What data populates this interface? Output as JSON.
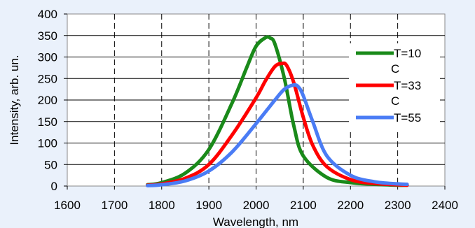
{
  "chart_data": {
    "type": "line",
    "title": "",
    "xlabel": "Wavelength, nm",
    "ylabel": "Intensity, arb. un.",
    "xlim": [
      1600,
      2400
    ],
    "ylim": [
      0,
      400
    ],
    "x_ticks": [
      "1600",
      "1700",
      "1800",
      "1900",
      "2000",
      "2100",
      "2200",
      "2300",
      "2400"
    ],
    "y_ticks": [
      "0",
      "50",
      "100",
      "150",
      "200",
      "250",
      "300",
      "350",
      "400"
    ],
    "grid": {
      "vertical": "dashed",
      "horizontal": "solid"
    },
    "legend_position": "right",
    "series": [
      {
        "name": "T=10",
        "name_extra": "C",
        "color": "#1a8a1a",
        "x": [
          1770,
          1800,
          1850,
          1900,
          1950,
          1980,
          2000,
          2020,
          2030,
          2040,
          2060,
          2080,
          2100,
          2150,
          2200,
          2250,
          2300,
          2320
        ],
        "y": [
          3,
          8,
          30,
          85,
          195,
          275,
          325,
          345,
          344,
          330,
          250,
          140,
          70,
          20,
          8,
          4,
          2,
          2
        ]
      },
      {
        "name": "T=33",
        "name_extra": "C",
        "color": "#ff0000",
        "x": [
          1770,
          1800,
          1850,
          1900,
          1950,
          2000,
          2020,
          2040,
          2055,
          2065,
          2080,
          2100,
          2120,
          2150,
          2200,
          2250,
          2300,
          2320
        ],
        "y": [
          2,
          5,
          18,
          50,
          120,
          205,
          245,
          278,
          285,
          280,
          240,
          160,
          95,
          45,
          15,
          6,
          3,
          2
        ]
      },
      {
        "name": "T=55",
        "name_extra": "",
        "color": "#4a7cf5",
        "x": [
          1770,
          1800,
          1850,
          1900,
          1950,
          2000,
          2040,
          2060,
          2080,
          2090,
          2100,
          2120,
          2150,
          2200,
          2250,
          2300,
          2320
        ],
        "y": [
          1,
          3,
          12,
          35,
          80,
          145,
          200,
          225,
          235,
          230,
          210,
          150,
          70,
          25,
          10,
          5,
          4
        ]
      }
    ]
  }
}
